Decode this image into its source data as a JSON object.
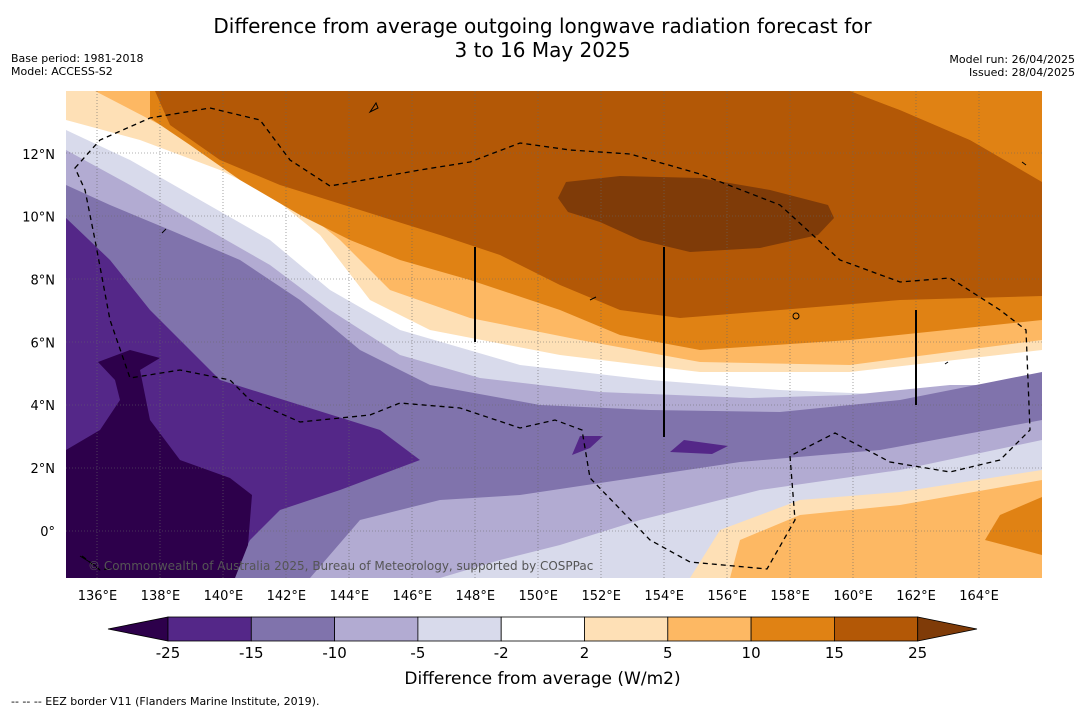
{
  "title_line1": "Difference from average outgoing longwave radiation forecast for",
  "title_line2": "3 to 16 May 2025",
  "left_meta": {
    "base_period": "Base period: 1981-2018",
    "model": "Model: ACCESS-S2"
  },
  "right_meta": {
    "model_run": "Model run: 26/04/2025",
    "issued": "Issued: 28/04/2025"
  },
  "map": {
    "lon_range": [
      135,
      166
    ],
    "lat_range": [
      -1.5,
      14
    ],
    "lat_ticks": [
      {
        "value": 0,
        "label": "0°"
      },
      {
        "value": 2,
        "label": "2°N"
      },
      {
        "value": 4,
        "label": "4°N"
      },
      {
        "value": 6,
        "label": "6°N"
      },
      {
        "value": 8,
        "label": "8°N"
      },
      {
        "value": 10,
        "label": "10°N"
      },
      {
        "value": 12,
        "label": "12°N"
      }
    ],
    "lon_ticks": [
      {
        "value": 136,
        "label": "136°E"
      },
      {
        "value": 138,
        "label": "138°E"
      },
      {
        "value": 140,
        "label": "140°E"
      },
      {
        "value": 142,
        "label": "142°E"
      },
      {
        "value": 144,
        "label": "144°E"
      },
      {
        "value": 146,
        "label": "146°E"
      },
      {
        "value": 148,
        "label": "148°E"
      },
      {
        "value": 150,
        "label": "150°E"
      },
      {
        "value": 152,
        "label": "152°E"
      },
      {
        "value": 154,
        "label": "154°E"
      },
      {
        "value": 156,
        "label": "156°E"
      },
      {
        "value": 158,
        "label": "158°E"
      },
      {
        "value": 160,
        "label": "160°E"
      },
      {
        "value": 162,
        "label": "162°E"
      },
      {
        "value": 164,
        "label": "164°E"
      }
    ],
    "copyright": "© Commonwealth of Australia 2025, Bureau of Meteorology, supported by COSPPac"
  },
  "colorbar": {
    "title": "Difference from average (W/m2)",
    "ticks": [
      "-25",
      "-15",
      "-10",
      "-5",
      "-2",
      "2",
      "5",
      "10",
      "15",
      "25"
    ],
    "low_extend_color": "#2d004b",
    "high_extend_color": "#7f3b08",
    "colors": [
      "#542788",
      "#8073ac",
      "#b2abd2",
      "#d8daeb",
      "#ffffff",
      "#fee0b6",
      "#fdb863",
      "#e08214",
      "#b35806"
    ]
  },
  "footnote": "--  --  -- EEZ border V11 (Flanders Marine Institute, 2019)."
}
